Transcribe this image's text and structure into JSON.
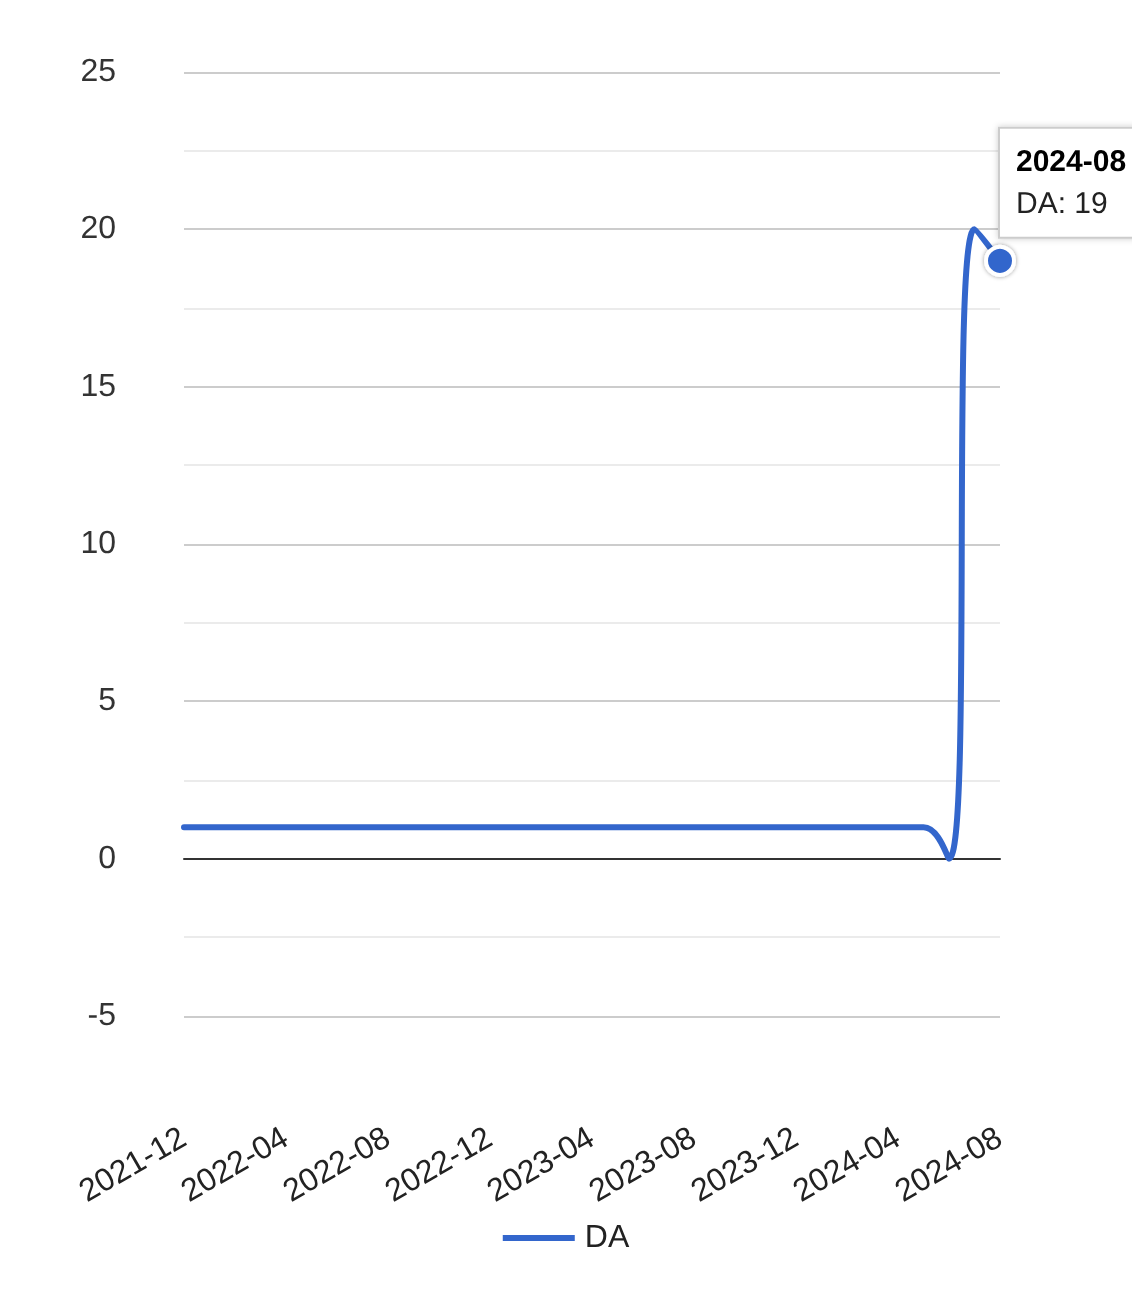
{
  "chart_data": {
    "type": "line",
    "categories": [
      "2021-12",
      null,
      null,
      null,
      "2022-04",
      null,
      null,
      null,
      "2022-08",
      null,
      null,
      null,
      "2022-12",
      null,
      null,
      null,
      "2023-04",
      null,
      null,
      null,
      "2023-08",
      null,
      null,
      null,
      "2023-12",
      null,
      null,
      null,
      "2024-04",
      null,
      null,
      null,
      "2024-08"
    ],
    "series": [
      {
        "name": "DA",
        "color": "#3366cc",
        "values": [
          1,
          1,
          1,
          1,
          1,
          1,
          1,
          1,
          1,
          1,
          1,
          1,
          1,
          1,
          1,
          1,
          1,
          1,
          1,
          1,
          1,
          1,
          1,
          1,
          1,
          1,
          1,
          1,
          1,
          1,
          0,
          20,
          19
        ]
      }
    ],
    "ylim": [
      -5,
      25
    ],
    "yticks": [
      -5,
      0,
      5,
      10,
      15,
      20,
      25
    ],
    "grid": "y",
    "legend": "bottom",
    "marker": "none",
    "line_style": "solid",
    "annotations": [
      {
        "text": "2024-08\nDA: 19",
        "x": "2024-08",
        "y": 19
      }
    ]
  }
}
